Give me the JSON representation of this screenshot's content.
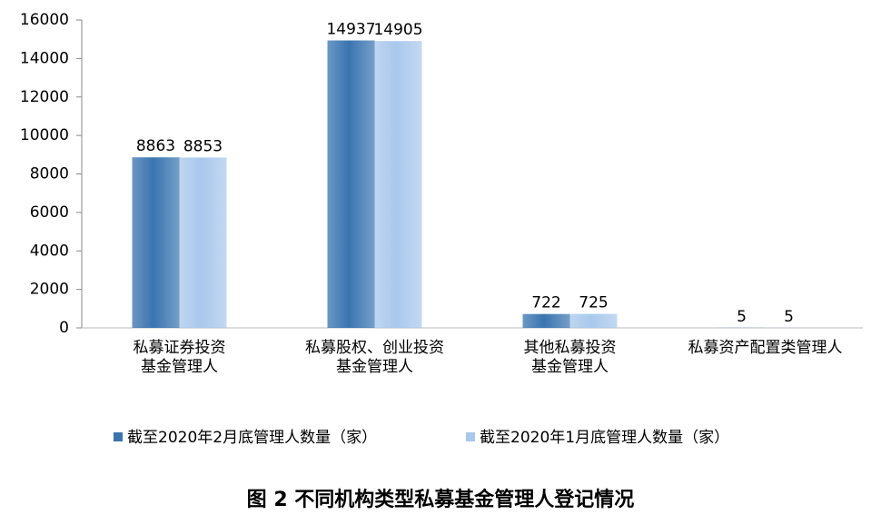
{
  "chart_data": {
    "type": "bar",
    "title": "图 2  不同机构类型私募基金管理人登记情况",
    "categories": [
      [
        "私募证券投资",
        "基金管理人"
      ],
      [
        "私募股权、创业投资",
        "基金管理人"
      ],
      [
        "其他私募投资",
        "基金管理人"
      ],
      [
        "私募资产配置类管理人"
      ]
    ],
    "series": [
      {
        "name": "截至2020年2月底管理人数量（家）",
        "color": "#3a75b0",
        "values": [
          8863,
          14937,
          722,
          5
        ]
      },
      {
        "name": "截至2020年1月底管理人数量（家）",
        "color": "#a9c8ec",
        "values": [
          8853,
          14905,
          725,
          5
        ]
      }
    ],
    "ylim": [
      0,
      16000
    ],
    "yticks": [
      0,
      2000,
      4000,
      6000,
      8000,
      10000,
      12000,
      14000,
      16000
    ],
    "grid": false
  }
}
